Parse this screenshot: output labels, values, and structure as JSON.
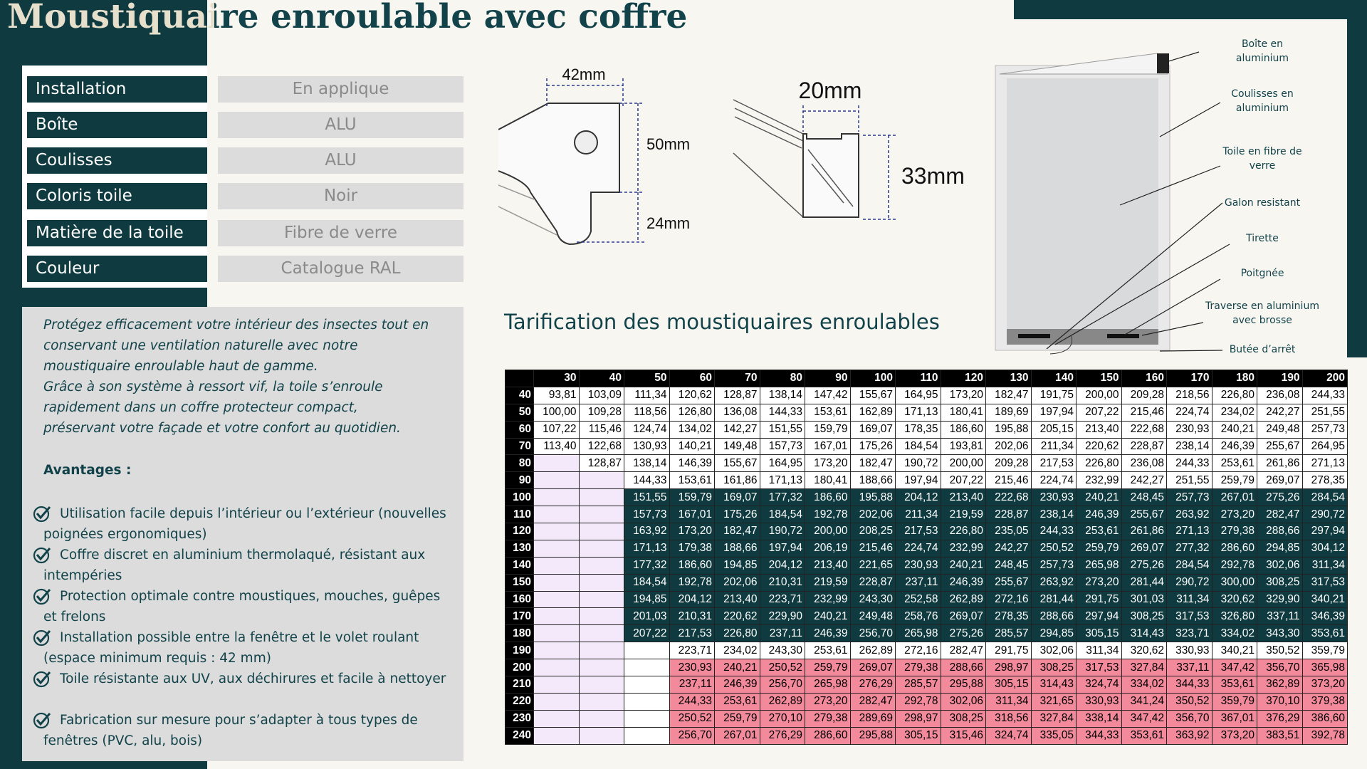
{
  "header": {
    "title": "Moustiquaire enroulable avec coffre"
  },
  "specs": [
    {
      "label": "Installation",
      "value": "En applique"
    },
    {
      "label": "Boîte",
      "value": "ALU"
    },
    {
      "label": "Coulisses",
      "value": "ALU"
    },
    {
      "label": "Coloris toile",
      "value": "Noir"
    },
    {
      "label": "Matière de la toile",
      "value": "Fibre de verre"
    },
    {
      "label": "Couleur",
      "value": "Catalogue RAL"
    }
  ],
  "description": {
    "lines": [
      "Protégez efficacement votre intérieur des insectes tout en",
      "conservant une  ventilation naturelle avec notre",
      "moustiquaire enroulable haut de gamme.",
      "Grâce à son système à ressort vif, la toile s’enroule",
      "rapidement dans un coffre protecteur compact,",
      "préservant votre  façade et votre confort au quotidien."
    ],
    "advantages_title": "Avantages :",
    "advantages": [
      "Utilisation facile depuis l’intérieur ou l’extérieur (nouvelles poignées  ergonomiques)",
      "Coffre discret en aluminium thermolaqué, résistant aux intempéries",
      "Protection optimale  contre moustiques, mouches, guêpes et frelons",
      "Installation possible entre la fenêtre et le volet roulant (espace minimum  requis : 42 mm)",
      "Toile résistante aux  UV, aux déchirures et facile à nettoyer",
      "Fabrication sur mesure pour s’adapter à tous types de fenêtres (PVC, alu, bois)"
    ]
  },
  "diagrams": {
    "box_width": "42mm",
    "box_height": "50mm",
    "box_bottom": "24mm",
    "rail_width": "20mm",
    "rail_height": "33mm"
  },
  "callouts": [
    "Boîte en\naluminium",
    "Coulisses en\naluminium",
    "Toile en fibre de\nverre",
    "Galon resistant",
    "Tirette",
    "Poitgnée",
    "Traverse en aluminium\navec  brosse",
    "Butée d’arrêt"
  ],
  "table": {
    "title": "Tarification des moustiquaires enroulables",
    "columns": [
      "30",
      "40",
      "50",
      "60",
      "70",
      "80",
      "90",
      "100",
      "110",
      "120",
      "130",
      "140",
      "150",
      "160",
      "170",
      "180",
      "190",
      "200"
    ],
    "rows": [
      {
        "label": "40",
        "fill": "#ffffff",
        "cells": [
          "93,81",
          "103,09",
          "111,34",
          "120,62",
          "128,87",
          "138,14",
          "147,42",
          "155,67",
          "164,95",
          "173,20",
          "182,47",
          "191,75",
          "200,00",
          "209,28",
          "218,56",
          "226,80",
          "236,08",
          "244,33"
        ]
      },
      {
        "label": "50",
        "fill": "#ffffff",
        "cells": [
          "100,00",
          "109,28",
          "118,56",
          "126,80",
          "136,08",
          "144,33",
          "153,61",
          "162,89",
          "171,13",
          "180,41",
          "189,69",
          "197,94",
          "207,22",
          "215,46",
          "224,74",
          "234,02",
          "242,27",
          "251,55"
        ]
      },
      {
        "label": "60",
        "fill": "#ffffff",
        "cells": [
          "107,22",
          "115,46",
          "124,74",
          "134,02",
          "142,27",
          "151,55",
          "159,79",
          "169,07",
          "178,35",
          "186,60",
          "195,88",
          "205,15",
          "213,40",
          "222,68",
          "230,93",
          "240,21",
          "249,48",
          "257,73"
        ]
      },
      {
        "label": "70",
        "fill": "#ffffff",
        "cells": [
          "113,40",
          "122,68",
          "130,93",
          "140,21",
          "149,48",
          "157,73",
          "167,01",
          "175,26",
          "184,54",
          "193,81",
          "202,06",
          "211,34",
          "220,62",
          "228,87",
          "238,14",
          "246,39",
          "255,67",
          "264,95"
        ]
      },
      {
        "label": "80",
        "fill": "#ffffff",
        "cells": [
          null,
          "128,87",
          "138,14",
          "146,39",
          "155,67",
          "164,95",
          "173,20",
          "182,47",
          "190,72",
          "200,00",
          "209,28",
          "217,53",
          "226,80",
          "236,08",
          "244,33",
          "253,61",
          "261,86",
          "271,13"
        ]
      },
      {
        "label": "90",
        "fill": "#ffffff",
        "cells": [
          null,
          null,
          "144,33",
          "153,61",
          "161,86",
          "171,13",
          "180,41",
          "188,66",
          "197,94",
          "207,22",
          "215,46",
          "224,74",
          "232,99",
          "242,27",
          "251,55",
          "259,79",
          "269,07",
          "278,35"
        ]
      },
      {
        "label": "100",
        "fill": "#0f3b40",
        "cells": [
          null,
          null,
          "151,55",
          "159,79",
          "169,07",
          "177,32",
          "186,60",
          "195,88",
          "204,12",
          "213,40",
          "222,68",
          "230,93",
          "240,21",
          "248,45",
          "257,73",
          "267,01",
          "275,26",
          "284,54"
        ]
      },
      {
        "label": "110",
        "fill": "#0f3b40",
        "cells": [
          null,
          null,
          "157,73",
          "167,01",
          "175,26",
          "184,54",
          "192,78",
          "202,06",
          "211,34",
          "219,59",
          "228,87",
          "238,14",
          "246,39",
          "255,67",
          "263,92",
          "273,20",
          "282,47",
          "290,72"
        ]
      },
      {
        "label": "120",
        "fill": "#0f3b40",
        "cells": [
          null,
          null,
          "163,92",
          "173,20",
          "182,47",
          "190,72",
          "200,00",
          "208,25",
          "217,53",
          "226,80",
          "235,05",
          "244,33",
          "253,61",
          "261,86",
          "271,13",
          "279,38",
          "288,66",
          "297,94"
        ]
      },
      {
        "label": "130",
        "fill": "#0f3b40",
        "cells": [
          null,
          null,
          "171,13",
          "179,38",
          "188,66",
          "197,94",
          "206,19",
          "215,46",
          "224,74",
          "232,99",
          "242,27",
          "250,52",
          "259,79",
          "269,07",
          "277,32",
          "286,60",
          "294,85",
          "304,12"
        ]
      },
      {
        "label": "140",
        "fill": "#0f3b40",
        "cells": [
          null,
          null,
          "177,32",
          "186,60",
          "194,85",
          "204,12",
          "213,40",
          "221,65",
          "230,93",
          "240,21",
          "248,45",
          "257,73",
          "265,98",
          "275,26",
          "284,54",
          "292,78",
          "302,06",
          "311,34"
        ]
      },
      {
        "label": "150",
        "fill": "#0f3b40",
        "cells": [
          null,
          null,
          "184,54",
          "192,78",
          "202,06",
          "210,31",
          "219,59",
          "228,87",
          "237,11",
          "246,39",
          "255,67",
          "263,92",
          "273,20",
          "281,44",
          "290,72",
          "300,00",
          "308,25",
          "317,53"
        ]
      },
      {
        "label": "160",
        "fill": "#0f3b40",
        "cells": [
          null,
          null,
          "194,85",
          "204,12",
          "213,40",
          "223,71",
          "232,99",
          "243,30",
          "252,58",
          "262,89",
          "272,16",
          "281,44",
          "291,75",
          "301,03",
          "311,34",
          "320,62",
          "329,90",
          "340,21"
        ]
      },
      {
        "label": "170",
        "fill": "#0f3b40",
        "cells": [
          null,
          null,
          "201,03",
          "210,31",
          "220,62",
          "229,90",
          "240,21",
          "249,48",
          "258,76",
          "269,07",
          "278,35",
          "288,66",
          "297,94",
          "308,25",
          "317,53",
          "326,80",
          "337,11",
          "346,39"
        ]
      },
      {
        "label": "180",
        "fill": "#0f3b40",
        "cells": [
          null,
          null,
          "207,22",
          "217,53",
          "226,80",
          "237,11",
          "246,39",
          "256,70",
          "265,98",
          "275,26",
          "285,57",
          "294,85",
          "305,15",
          "314,43",
          "323,71",
          "334,02",
          "343,30",
          "353,61"
        ]
      },
      {
        "label": "190",
        "fill": "#ffffff",
        "cells": [
          null,
          null,
          null,
          "223,71",
          "234,02",
          "243,30",
          "253,61",
          "262,89",
          "272,16",
          "282,47",
          "291,75",
          "302,06",
          "311,34",
          "320,62",
          "330,93",
          "340,21",
          "350,52",
          "359,79"
        ]
      },
      {
        "label": "200",
        "fill": "#f28a9c",
        "cells": [
          null,
          null,
          null,
          "230,93",
          "240,21",
          "250,52",
          "259,79",
          "269,07",
          "279,38",
          "288,66",
          "298,97",
          "308,25",
          "317,53",
          "327,84",
          "337,11",
          "347,42",
          "356,70",
          "365,98"
        ]
      },
      {
        "label": "210",
        "fill": "#f28a9c",
        "cells": [
          null,
          null,
          null,
          "237,11",
          "246,39",
          "256,70",
          "265,98",
          "276,29",
          "285,57",
          "295,88",
          "305,15",
          "314,43",
          "324,74",
          "334,02",
          "344,33",
          "353,61",
          "362,89",
          "373,20"
        ]
      },
      {
        "label": "220",
        "fill": "#f28a9c",
        "cells": [
          null,
          null,
          null,
          "244,33",
          "253,61",
          "262,89",
          "273,20",
          "282,47",
          "292,78",
          "302,06",
          "311,34",
          "321,65",
          "330,93",
          "341,24",
          "350,52",
          "359,79",
          "370,10",
          "379,38"
        ]
      },
      {
        "label": "230",
        "fill": "#f28a9c",
        "cells": [
          null,
          null,
          null,
          "250,52",
          "259,79",
          "270,10",
          "279,38",
          "289,69",
          "298,97",
          "308,25",
          "318,56",
          "327,84",
          "338,14",
          "347,42",
          "356,70",
          "367,01",
          "376,29",
          "386,60"
        ]
      },
      {
        "label": "240",
        "fill": "#f28a9c",
        "cells": [
          null,
          null,
          null,
          "256,70",
          "267,01",
          "276,29",
          "286,60",
          "295,88",
          "305,15",
          "315,46",
          "324,74",
          "335,05",
          "344,33",
          "353,61",
          "363,92",
          "373,20",
          "383,51",
          "392,78"
        ]
      }
    ]
  }
}
